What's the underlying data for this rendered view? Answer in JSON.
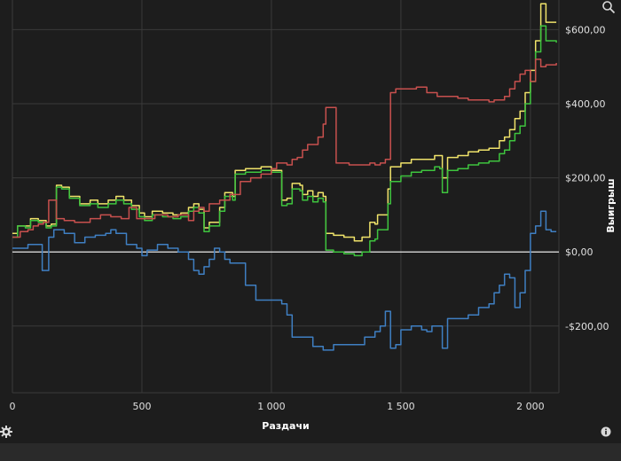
{
  "chart_data": {
    "type": "line",
    "xlabel": "Раздачи",
    "ylabel": "Выигрыш",
    "xlim": [
      0,
      2110
    ],
    "ylim": [
      -380,
      680
    ],
    "x_ticks": [
      {
        "value": 0,
        "label": "0"
      },
      {
        "value": 500,
        "label": "500"
      },
      {
        "value": 1000,
        "label": "1 000"
      },
      {
        "value": 1500,
        "label": "1 500"
      },
      {
        "value": 2000,
        "label": "2 000"
      }
    ],
    "y_ticks": [
      {
        "value": 600,
        "label": "$600,00"
      },
      {
        "value": 400,
        "label": "$400,00"
      },
      {
        "value": 200,
        "label": "$200,00"
      },
      {
        "value": 0,
        "label": "$0,00"
      },
      {
        "value": -200,
        "label": "-$200,00"
      }
    ],
    "grid": true,
    "colors": {
      "background": "#1d1d1d",
      "grid": "#3a3a3a",
      "zero_line": "#ffffff"
    },
    "series": [
      {
        "color": "#f0e36a",
        "points": [
          [
            0,
            50
          ],
          [
            20,
            70
          ],
          [
            50,
            70
          ],
          [
            70,
            90
          ],
          [
            100,
            85
          ],
          [
            130,
            70
          ],
          [
            150,
            75
          ],
          [
            170,
            180
          ],
          [
            190,
            175
          ],
          [
            220,
            150
          ],
          [
            260,
            130
          ],
          [
            300,
            140
          ],
          [
            330,
            130
          ],
          [
            370,
            140
          ],
          [
            400,
            150
          ],
          [
            430,
            140
          ],
          [
            460,
            125
          ],
          [
            490,
            105
          ],
          [
            510,
            95
          ],
          [
            540,
            110
          ],
          [
            580,
            105
          ],
          [
            620,
            100
          ],
          [
            650,
            105
          ],
          [
            680,
            120
          ],
          [
            700,
            130
          ],
          [
            720,
            115
          ],
          [
            740,
            65
          ],
          [
            760,
            80
          ],
          [
            800,
            120
          ],
          [
            820,
            160
          ],
          [
            850,
            150
          ],
          [
            860,
            220
          ],
          [
            880,
            220
          ],
          [
            900,
            225
          ],
          [
            960,
            230
          ],
          [
            1000,
            220
          ],
          [
            1040,
            140
          ],
          [
            1060,
            145
          ],
          [
            1080,
            185
          ],
          [
            1110,
            180
          ],
          [
            1120,
            155
          ],
          [
            1140,
            165
          ],
          [
            1160,
            150
          ],
          [
            1180,
            160
          ],
          [
            1200,
            150
          ],
          [
            1210,
            50
          ],
          [
            1240,
            45
          ],
          [
            1280,
            40
          ],
          [
            1320,
            30
          ],
          [
            1350,
            40
          ],
          [
            1380,
            80
          ],
          [
            1400,
            75
          ],
          [
            1410,
            100
          ],
          [
            1450,
            170
          ],
          [
            1460,
            230
          ],
          [
            1500,
            240
          ],
          [
            1540,
            250
          ],
          [
            1580,
            250
          ],
          [
            1600,
            250
          ],
          [
            1630,
            260
          ],
          [
            1650,
            260
          ],
          [
            1660,
            200
          ],
          [
            1680,
            255
          ],
          [
            1720,
            260
          ],
          [
            1760,
            270
          ],
          [
            1800,
            275
          ],
          [
            1840,
            280
          ],
          [
            1880,
            300
          ],
          [
            1900,
            310
          ],
          [
            1920,
            330
          ],
          [
            1940,
            360
          ],
          [
            1960,
            380
          ],
          [
            1980,
            430
          ],
          [
            2000,
            490
          ],
          [
            2020,
            570
          ],
          [
            2040,
            670
          ],
          [
            2060,
            620
          ],
          [
            2080,
            620
          ],
          [
            2100,
            620
          ]
        ]
      },
      {
        "color": "#3ec43e",
        "points": [
          [
            0,
            40
          ],
          [
            20,
            70
          ],
          [
            50,
            65
          ],
          [
            70,
            85
          ],
          [
            100,
            80
          ],
          [
            130,
            65
          ],
          [
            150,
            70
          ],
          [
            170,
            175
          ],
          [
            190,
            170
          ],
          [
            220,
            145
          ],
          [
            260,
            125
          ],
          [
            300,
            130
          ],
          [
            330,
            120
          ],
          [
            370,
            130
          ],
          [
            400,
            140
          ],
          [
            430,
            130
          ],
          [
            460,
            115
          ],
          [
            490,
            95
          ],
          [
            510,
            85
          ],
          [
            540,
            100
          ],
          [
            580,
            95
          ],
          [
            620,
            90
          ],
          [
            650,
            95
          ],
          [
            680,
            110
          ],
          [
            700,
            120
          ],
          [
            720,
            105
          ],
          [
            740,
            55
          ],
          [
            760,
            70
          ],
          [
            800,
            110
          ],
          [
            820,
            150
          ],
          [
            850,
            140
          ],
          [
            860,
            210
          ],
          [
            880,
            210
          ],
          [
            900,
            215
          ],
          [
            960,
            220
          ],
          [
            1000,
            215
          ],
          [
            1040,
            125
          ],
          [
            1060,
            130
          ],
          [
            1080,
            170
          ],
          [
            1110,
            165
          ],
          [
            1120,
            140
          ],
          [
            1140,
            150
          ],
          [
            1160,
            135
          ],
          [
            1180,
            145
          ],
          [
            1200,
            135
          ],
          [
            1210,
            5
          ],
          [
            1240,
            0
          ],
          [
            1280,
            -5
          ],
          [
            1320,
            -10
          ],
          [
            1350,
            0
          ],
          [
            1380,
            30
          ],
          [
            1400,
            35
          ],
          [
            1410,
            60
          ],
          [
            1450,
            130
          ],
          [
            1460,
            190
          ],
          [
            1500,
            205
          ],
          [
            1540,
            215
          ],
          [
            1580,
            220
          ],
          [
            1600,
            220
          ],
          [
            1630,
            230
          ],
          [
            1650,
            225
          ],
          [
            1660,
            160
          ],
          [
            1680,
            220
          ],
          [
            1720,
            225
          ],
          [
            1760,
            235
          ],
          [
            1800,
            240
          ],
          [
            1840,
            245
          ],
          [
            1880,
            265
          ],
          [
            1900,
            275
          ],
          [
            1920,
            300
          ],
          [
            1940,
            320
          ],
          [
            1960,
            340
          ],
          [
            1980,
            400
          ],
          [
            2000,
            460
          ],
          [
            2020,
            540
          ],
          [
            2040,
            610
          ],
          [
            2060,
            570
          ],
          [
            2080,
            570
          ],
          [
            2100,
            565
          ]
        ]
      },
      {
        "color": "#c8504e",
        "points": [
          [
            0,
            40
          ],
          [
            30,
            55
          ],
          [
            60,
            60
          ],
          [
            80,
            70
          ],
          [
            100,
            75
          ],
          [
            120,
            80
          ],
          [
            140,
            140
          ],
          [
            170,
            90
          ],
          [
            200,
            85
          ],
          [
            240,
            80
          ],
          [
            280,
            80
          ],
          [
            300,
            90
          ],
          [
            340,
            100
          ],
          [
            380,
            95
          ],
          [
            420,
            90
          ],
          [
            450,
            120
          ],
          [
            480,
            90
          ],
          [
            510,
            90
          ],
          [
            550,
            100
          ],
          [
            600,
            95
          ],
          [
            640,
            100
          ],
          [
            680,
            85
          ],
          [
            700,
            110
          ],
          [
            720,
            120
          ],
          [
            740,
            110
          ],
          [
            760,
            130
          ],
          [
            800,
            140
          ],
          [
            840,
            155
          ],
          [
            880,
            190
          ],
          [
            920,
            200
          ],
          [
            960,
            210
          ],
          [
            1000,
            225
          ],
          [
            1020,
            240
          ],
          [
            1060,
            235
          ],
          [
            1080,
            250
          ],
          [
            1100,
            255
          ],
          [
            1120,
            275
          ],
          [
            1140,
            290
          ],
          [
            1180,
            310
          ],
          [
            1200,
            345
          ],
          [
            1210,
            390
          ],
          [
            1230,
            390
          ],
          [
            1250,
            240
          ],
          [
            1300,
            235
          ],
          [
            1340,
            235
          ],
          [
            1380,
            240
          ],
          [
            1400,
            235
          ],
          [
            1420,
            240
          ],
          [
            1440,
            250
          ],
          [
            1460,
            430
          ],
          [
            1480,
            440
          ],
          [
            1500,
            440
          ],
          [
            1540,
            440
          ],
          [
            1560,
            445
          ],
          [
            1600,
            430
          ],
          [
            1640,
            420
          ],
          [
            1680,
            420
          ],
          [
            1720,
            415
          ],
          [
            1760,
            410
          ],
          [
            1800,
            410
          ],
          [
            1840,
            405
          ],
          [
            1860,
            410
          ],
          [
            1880,
            410
          ],
          [
            1900,
            420
          ],
          [
            1920,
            440
          ],
          [
            1940,
            460
          ],
          [
            1960,
            480
          ],
          [
            1980,
            490
          ],
          [
            2000,
            460
          ],
          [
            2020,
            520
          ],
          [
            2040,
            500
          ],
          [
            2060,
            505
          ],
          [
            2080,
            505
          ],
          [
            2100,
            510
          ]
        ]
      },
      {
        "color": "#3f7fc2",
        "points": [
          [
            0,
            10
          ],
          [
            40,
            10
          ],
          [
            60,
            20
          ],
          [
            80,
            20
          ],
          [
            110,
            20
          ],
          [
            115,
            -50
          ],
          [
            130,
            -50
          ],
          [
            140,
            40
          ],
          [
            160,
            60
          ],
          [
            200,
            50
          ],
          [
            240,
            25
          ],
          [
            280,
            40
          ],
          [
            320,
            45
          ],
          [
            360,
            50
          ],
          [
            380,
            60
          ],
          [
            400,
            50
          ],
          [
            440,
            20
          ],
          [
            480,
            10
          ],
          [
            500,
            -10
          ],
          [
            520,
            5
          ],
          [
            560,
            20
          ],
          [
            600,
            10
          ],
          [
            640,
            0
          ],
          [
            680,
            -20
          ],
          [
            700,
            -50
          ],
          [
            720,
            -60
          ],
          [
            740,
            -40
          ],
          [
            760,
            -20
          ],
          [
            780,
            10
          ],
          [
            800,
            0
          ],
          [
            820,
            -20
          ],
          [
            840,
            -30
          ],
          [
            880,
            -30
          ],
          [
            900,
            -90
          ],
          [
            940,
            -130
          ],
          [
            980,
            -130
          ],
          [
            1000,
            -130
          ],
          [
            1040,
            -140
          ],
          [
            1060,
            -170
          ],
          [
            1080,
            -230
          ],
          [
            1120,
            -230
          ],
          [
            1160,
            -255
          ],
          [
            1200,
            -265
          ],
          [
            1240,
            -250
          ],
          [
            1280,
            -250
          ],
          [
            1320,
            -250
          ],
          [
            1360,
            -230
          ],
          [
            1400,
            -215
          ],
          [
            1420,
            -200
          ],
          [
            1440,
            -160
          ],
          [
            1460,
            -260
          ],
          [
            1480,
            -250
          ],
          [
            1500,
            -210
          ],
          [
            1540,
            -200
          ],
          [
            1580,
            -210
          ],
          [
            1600,
            -215
          ],
          [
            1620,
            -200
          ],
          [
            1660,
            -260
          ],
          [
            1680,
            -180
          ],
          [
            1720,
            -180
          ],
          [
            1760,
            -170
          ],
          [
            1800,
            -150
          ],
          [
            1840,
            -140
          ],
          [
            1860,
            -110
          ],
          [
            1880,
            -90
          ],
          [
            1900,
            -60
          ],
          [
            1920,
            -70
          ],
          [
            1940,
            -150
          ],
          [
            1960,
            -110
          ],
          [
            1980,
            -50
          ],
          [
            2000,
            50
          ],
          [
            2020,
            70
          ],
          [
            2040,
            110
          ],
          [
            2060,
            60
          ],
          [
            2080,
            55
          ],
          [
            2100,
            55
          ]
        ]
      }
    ]
  },
  "icons": {
    "zoom": "zoom-icon",
    "settings": "gear-icon",
    "info": "info-icon"
  }
}
